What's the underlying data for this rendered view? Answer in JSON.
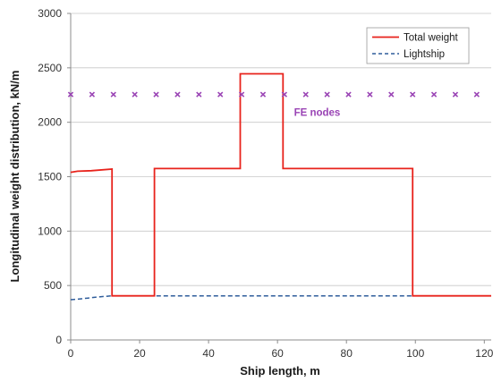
{
  "chart_data": {
    "type": "line",
    "title": "",
    "xlabel": "Ship length, m",
    "ylabel": "Longitudinal weight distribution, kN/m",
    "xlim": [
      0,
      122
    ],
    "ylim": [
      0,
      3000
    ],
    "x_ticks": [
      0,
      20,
      40,
      60,
      80,
      100,
      120
    ],
    "y_ticks": [
      0,
      500,
      1000,
      1500,
      2000,
      2500,
      3000
    ],
    "grid": "horizontal",
    "legend_position": "top-right",
    "colors": {
      "total": "#e8231c",
      "lightship": "#2f5d9b",
      "nodes": "#9a44b5",
      "grid": "#c8c8c8",
      "axis": "#8c8c8c"
    },
    "series": [
      {
        "name": "Total weight",
        "style": "solid",
        "x": [
          0,
          2,
          6,
          12,
          12,
          24.3,
          24.3,
          49.2,
          49.2,
          61.6,
          61.6,
          99.2,
          99.2,
          122
        ],
        "y": [
          1540,
          1550,
          1555,
          1570,
          405,
          405,
          1575,
          1575,
          2445,
          2445,
          1575,
          1575,
          405,
          405
        ]
      },
      {
        "name": "Lightship",
        "style": "dashed",
        "x": [
          0,
          2,
          5,
          8,
          12,
          24,
          50,
          80,
          100,
          122
        ],
        "y": [
          370,
          375,
          385,
          395,
          405,
          405,
          405,
          405,
          405,
          405
        ]
      },
      {
        "name": "FE nodes",
        "style": "markers",
        "x": [
          0,
          6.2,
          12.4,
          18.6,
          24.8,
          31,
          37.2,
          43.4,
          49.6,
          55.8,
          62,
          68.2,
          74.4,
          80.6,
          86.8,
          93,
          99.2,
          105.4,
          111.6,
          117.8
        ],
        "y": [
          2255,
          2255,
          2255,
          2255,
          2255,
          2255,
          2255,
          2255,
          2255,
          2255,
          2255,
          2255,
          2255,
          2255,
          2255,
          2255,
          2255,
          2255,
          2255,
          2255
        ]
      }
    ],
    "annotations": [
      {
        "text": "FE nodes",
        "x": 71.5,
        "y": 2060
      }
    ]
  }
}
